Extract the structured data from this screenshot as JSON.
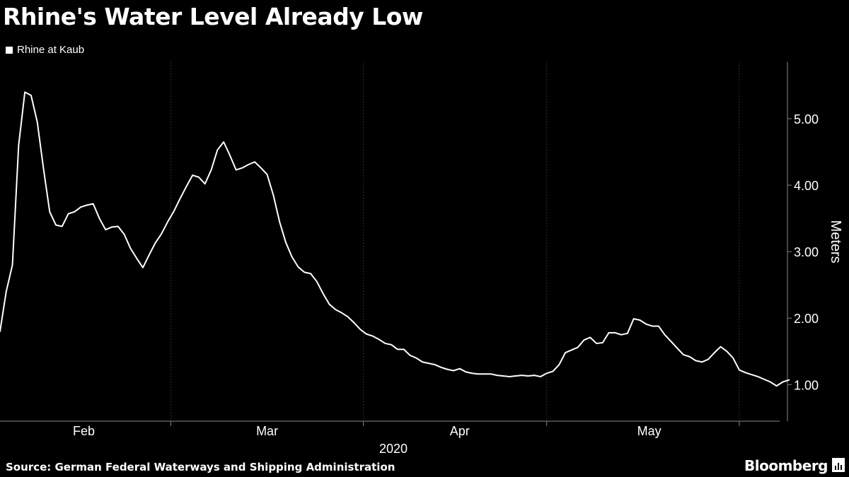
{
  "title": "Rhine's Water Level Already Low",
  "source": "Source: German Federal Waterways and Shipping Administration",
  "brand": "Bloomberg",
  "brand_icon": "bar-chart-icon",
  "colors": {
    "background": "#000000",
    "line": "#ffffff",
    "grid": "#555555"
  },
  "chart_data": {
    "type": "line",
    "title": "Rhine's Water Level Already Low",
    "legend": {
      "position": "top-left",
      "entries": [
        "Rhine at Kaub"
      ]
    },
    "xlabel": "2020",
    "ylabel": "Meters",
    "y_axis_side": "right",
    "ylim": [
      0.45,
      5.85
    ],
    "yticks": [
      1.0,
      2.0,
      3.0,
      4.0,
      5.0
    ],
    "ytick_labels": [
      "1.00",
      "2.00",
      "3.00",
      "4.00",
      "5.00"
    ],
    "xlim": [
      0,
      125.5
    ],
    "xticks": [
      {
        "label": "Feb",
        "x": 13.5
      },
      {
        "label": "Mar",
        "x": 43
      },
      {
        "label": "Apr",
        "x": 74
      },
      {
        "label": "May",
        "x": 104.5
      }
    ],
    "vertical_gridlines_x": [
      27.5,
      58.5,
      88,
      119
    ],
    "grid": {
      "vertical": true,
      "horizontal": false,
      "style": "dotted"
    },
    "series": [
      {
        "name": "Rhine at Kaub",
        "values": [
          1.8,
          2.4,
          2.8,
          4.6,
          5.4,
          5.35,
          4.95,
          4.25,
          3.6,
          3.4,
          3.38,
          3.57,
          3.6,
          3.67,
          3.7,
          3.72,
          3.5,
          3.33,
          3.37,
          3.38,
          3.26,
          3.05,
          2.9,
          2.76,
          2.95,
          3.13,
          3.27,
          3.45,
          3.61,
          3.8,
          3.98,
          4.15,
          4.12,
          4.02,
          4.23,
          4.53,
          4.65,
          4.45,
          4.23,
          4.26,
          4.31,
          4.35,
          4.26,
          4.16,
          3.85,
          3.45,
          3.14,
          2.92,
          2.77,
          2.69,
          2.67,
          2.55,
          2.37,
          2.21,
          2.13,
          2.08,
          2.02,
          1.93,
          1.83,
          1.76,
          1.73,
          1.68,
          1.62,
          1.6,
          1.53,
          1.53,
          1.44,
          1.4,
          1.34,
          1.32,
          1.3,
          1.26,
          1.23,
          1.21,
          1.24,
          1.19,
          1.17,
          1.16,
          1.16,
          1.16,
          1.14,
          1.13,
          1.12,
          1.13,
          1.14,
          1.13,
          1.14,
          1.12,
          1.17,
          1.2,
          1.3,
          1.48,
          1.52,
          1.56,
          1.67,
          1.71,
          1.62,
          1.63,
          1.78,
          1.78,
          1.75,
          1.77,
          1.99,
          1.97,
          1.91,
          1.88,
          1.88,
          1.75,
          1.65,
          1.55,
          1.45,
          1.42,
          1.36,
          1.34,
          1.38,
          1.48,
          1.57,
          1.5,
          1.4,
          1.22,
          1.18,
          1.15,
          1.12,
          1.08,
          1.04,
          0.98,
          1.04,
          1.07
        ]
      }
    ]
  }
}
